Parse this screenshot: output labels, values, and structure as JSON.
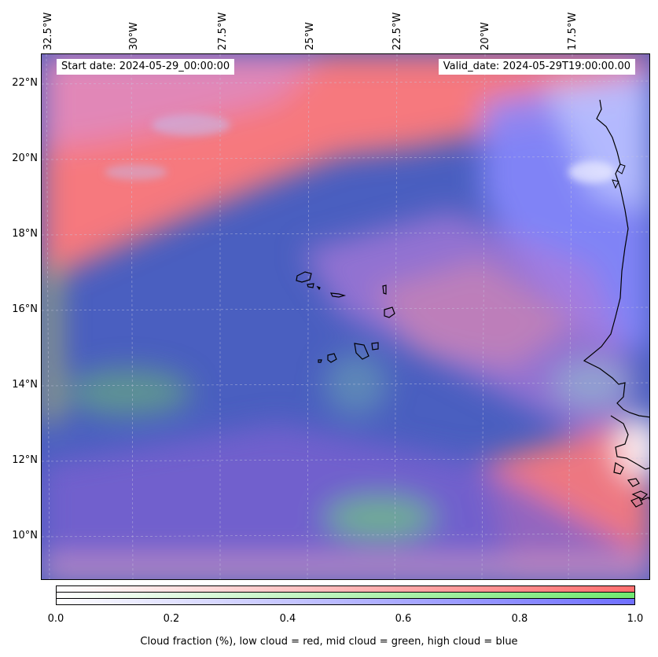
{
  "map": {
    "start_date": "Start date: 2024-05-29_00:00:00",
    "valid_date": "Valid_date: 2024-05-29T19:00:00.00",
    "lon_labels": [
      "32.5°W",
      "30°W",
      "27.5°W",
      "25°W",
      "22.5°W",
      "20°W",
      "17.5°W"
    ],
    "lat_labels": [
      "22°N",
      "20°N",
      "18°N",
      "16°N",
      "14°N",
      "12°N",
      "10°N"
    ],
    "colors": {
      "low_cloud": "#ff7070",
      "mid_cloud": "#70e070",
      "high_cloud": "#7070ff",
      "ocean_base": "#4a5fc0",
      "coastline": "#000000"
    }
  },
  "colorbar": {
    "ticks": [
      "0.0",
      "0.2",
      "0.4",
      "0.6",
      "0.8",
      "1.0"
    ],
    "label": "Cloud fraction (%), low cloud = red, mid cloud = green, high cloud = blue"
  }
}
